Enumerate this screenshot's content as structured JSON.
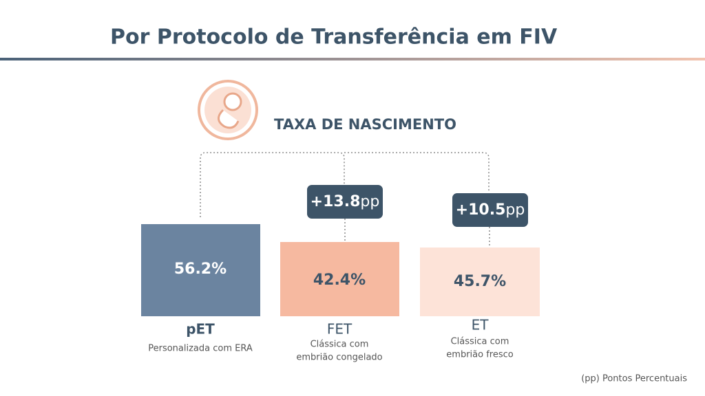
{
  "header": {
    "title": "Por Protocolo de Transferência em FIV"
  },
  "section": {
    "title": "TAXA DE NASCIMENTO"
  },
  "groups": [
    {
      "value": "56.2%",
      "name": "pET",
      "description": [
        "Personalizada com ERA"
      ]
    },
    {
      "value": "42.4%",
      "difference": "+13.8",
      "difference_unit": "pp",
      "name": "FET",
      "description": [
        "Clássica com",
        "embrião congelado"
      ]
    },
    {
      "value": "45.7%",
      "difference": "+10.5",
      "difference_unit": "pp",
      "name": "ET",
      "description": [
        "Clássica com",
        "embrião fresco"
      ]
    }
  ],
  "footnote": "(pp) Pontos Percentuais"
}
